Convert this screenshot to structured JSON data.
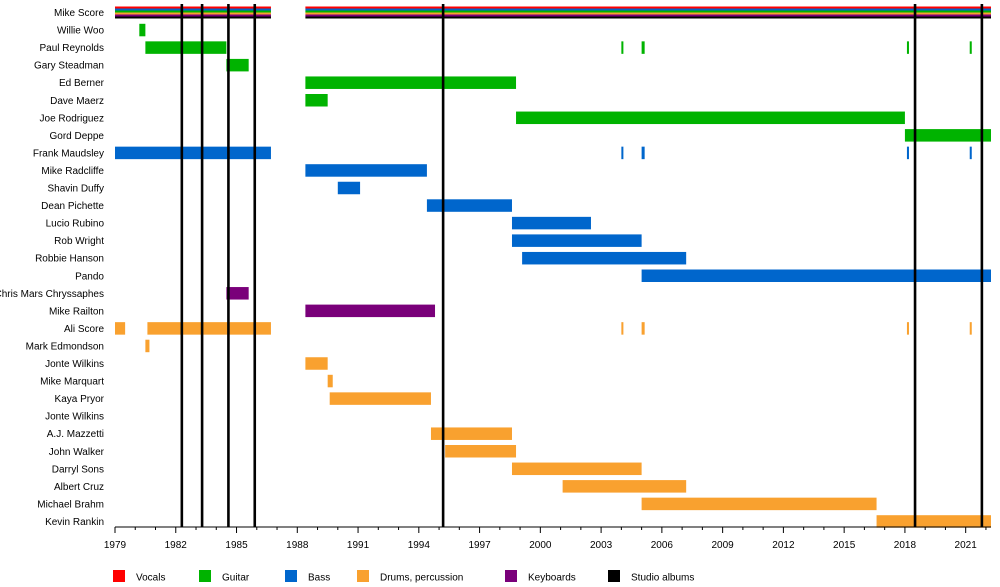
{
  "chart_data": {
    "type": "timeline",
    "x_range": [
      1979,
      2022.25
    ],
    "ticks": [
      1979,
      1982,
      1985,
      1988,
      1991,
      1994,
      1997,
      2000,
      2003,
      2006,
      2009,
      2012,
      2015,
      2018,
      2021
    ],
    "colors": {
      "vocals": "#ff0000",
      "guitar": "#00b300",
      "bass": "#0066cc",
      "drums": "#f9a12f",
      "keyboards": "#7a007a",
      "albums": "#000000"
    },
    "legend": [
      {
        "key": "vocals",
        "label": "Vocals"
      },
      {
        "key": "guitar",
        "label": "Guitar"
      },
      {
        "key": "bass",
        "label": "Bass"
      },
      {
        "key": "drums",
        "label": "Drums, percussion"
      },
      {
        "key": "keyboards",
        "label": "Keyboards"
      },
      {
        "key": "albums",
        "label": "Studio albums"
      }
    ],
    "albums": [
      1982.3,
      1983.3,
      1984.6,
      1985.9,
      1995.2,
      2018.5,
      2021.8
    ],
    "members": [
      {
        "name": "Mike Score",
        "multi": true,
        "periods": [
          [
            1979,
            1986.7
          ],
          [
            1988.4,
            2022.25
          ]
        ]
      },
      {
        "name": "Willie Woo",
        "role": "guitar",
        "periods": [
          [
            1980.2,
            1980.5
          ]
        ]
      },
      {
        "name": "Paul Reynolds",
        "role": "guitar",
        "periods": [
          [
            1980.5,
            1984.5
          ],
          [
            2004,
            2004.1
          ],
          [
            2005,
            2005.15
          ],
          [
            2018.1,
            2018.2
          ],
          [
            2021.2,
            2021.3
          ]
        ]
      },
      {
        "name": "Gary Steadman",
        "role": "guitar",
        "periods": [
          [
            1984.5,
            1985.6
          ]
        ]
      },
      {
        "name": "Ed Berner",
        "role": "guitar",
        "periods": [
          [
            1988.4,
            1998.8
          ]
        ]
      },
      {
        "name": "Dave Maerz",
        "role": "guitar",
        "periods": [
          [
            1988.4,
            1989.5
          ]
        ]
      },
      {
        "name": "Joe Rodriguez",
        "role": "guitar",
        "periods": [
          [
            1998.8,
            2018
          ]
        ]
      },
      {
        "name": "Gord Deppe",
        "role": "guitar",
        "periods": [
          [
            2018,
            2022.25
          ]
        ]
      },
      {
        "name": "Frank Maudsley",
        "role": "bass",
        "periods": [
          [
            1979,
            1986.7
          ],
          [
            2004,
            2004.1
          ],
          [
            2005,
            2005.15
          ],
          [
            2018.1,
            2018.2
          ],
          [
            2021.2,
            2021.3
          ]
        ]
      },
      {
        "name": "Mike Radcliffe",
        "role": "bass",
        "periods": [
          [
            1988.4,
            1994.4
          ]
        ]
      },
      {
        "name": "Shavin Duffy",
        "role": "bass",
        "periods": [
          [
            1990,
            1991.1
          ]
        ]
      },
      {
        "name": "Dean Pichette",
        "role": "bass",
        "periods": [
          [
            1994.4,
            1998.6
          ]
        ]
      },
      {
        "name": "Lucio Rubino",
        "role": "bass",
        "periods": [
          [
            1998.6,
            2002.5
          ]
        ]
      },
      {
        "name": "Rob Wright",
        "role": "bass",
        "periods": [
          [
            1998.6,
            2005
          ]
        ]
      },
      {
        "name": "Robbie Hanson",
        "role": "bass",
        "periods": [
          [
            1999.1,
            2007.2
          ]
        ]
      },
      {
        "name": "Pando",
        "role": "bass",
        "periods": [
          [
            2005,
            2022.25
          ]
        ]
      },
      {
        "name": "Chris Mars Chryssaphes",
        "role": "keyboards",
        "periods": [
          [
            1984.5,
            1985.6
          ]
        ]
      },
      {
        "name": "Mike Railton",
        "role": "keyboards",
        "periods": [
          [
            1988.4,
            1994.8
          ]
        ]
      },
      {
        "name": "Ali Score",
        "role": "drums",
        "periods": [
          [
            1979,
            1979.5
          ],
          [
            1980.6,
            1986.7
          ],
          [
            2004,
            2004.1
          ],
          [
            2005,
            2005.15
          ],
          [
            2018.1,
            2018.2
          ],
          [
            2021.2,
            2021.3
          ]
        ]
      },
      {
        "name": "Mark Edmondson",
        "role": "drums",
        "periods": [
          [
            1980.5,
            1980.7
          ]
        ]
      },
      {
        "name": "Jonte Wilkins",
        "role": "drums",
        "periods": [
          [
            1988.4,
            1989.5
          ]
        ]
      },
      {
        "name": "Mike Marquart",
        "role": "drums",
        "periods": [
          [
            1989.5,
            1989.75
          ]
        ]
      },
      {
        "name": "Kaya Pryor",
        "role": "drums",
        "periods": [
          [
            1989.6,
            1994.6
          ]
        ]
      },
      {
        "name": "Jonte Wilkins",
        "role": "drums",
        "periods": []
      },
      {
        "name": "A.J. Mazzetti",
        "role": "drums",
        "periods": [
          [
            1994.6,
            1998.6
          ]
        ]
      },
      {
        "name": "John Walker",
        "role": "drums",
        "periods": [
          [
            1995.3,
            1998.8
          ]
        ]
      },
      {
        "name": "Darryl Sons",
        "role": "drums",
        "periods": [
          [
            1998.6,
            2005
          ]
        ]
      },
      {
        "name": "Albert Cruz",
        "role": "drums",
        "periods": [
          [
            2001.1,
            2007.2
          ]
        ]
      },
      {
        "name": "Michael Brahm",
        "role": "drums",
        "periods": [
          [
            2005,
            2016.6
          ]
        ]
      },
      {
        "name": "Kevin Rankin",
        "role": "drums",
        "periods": [
          [
            2016.6,
            2022.25
          ]
        ]
      }
    ]
  }
}
